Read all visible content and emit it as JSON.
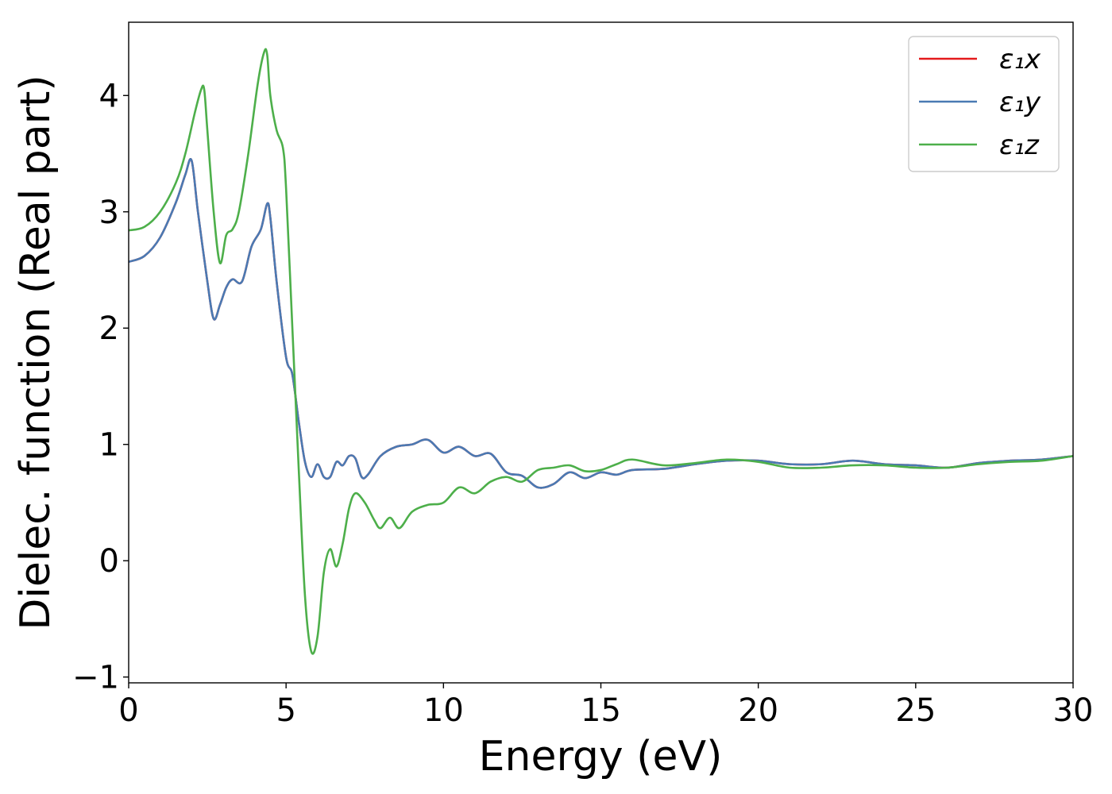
{
  "chart_data": {
    "type": "line",
    "xlabel": "Energy (eV)",
    "ylabel": "Dielec. function (Real part)",
    "xlim": [
      0,
      30
    ],
    "ylim": [
      -1.05,
      4.63
    ],
    "xticks": [
      0,
      5,
      10,
      15,
      20,
      25,
      30
    ],
    "xtick_labels": [
      "0",
      "5",
      "10",
      "15",
      "20",
      "25",
      "30"
    ],
    "yticks": [
      -1,
      0,
      1,
      2,
      3,
      4
    ],
    "ytick_labels": [
      "−1",
      "0",
      "1",
      "2",
      "3",
      "4"
    ],
    "grid": false,
    "legend_position": "top-right",
    "series": [
      {
        "name": "ε₁x",
        "color": "#e41a1c",
        "x": [
          0,
          0.5,
          1,
          1.5,
          1.8,
          2.0,
          2.2,
          2.5,
          2.7,
          2.9,
          3.1,
          3.3,
          3.6,
          3.9,
          4.2,
          4.4,
          4.5,
          4.7,
          5.0,
          5.2,
          5.4,
          5.6,
          5.8,
          6.0,
          6.2,
          6.4,
          6.6,
          6.8,
          7.0,
          7.2,
          7.4,
          7.6,
          8.0,
          8.5,
          9.0,
          9.5,
          10.0,
          10.5,
          11.0,
          11.5,
          12.0,
          12.5,
          13.0,
          13.5,
          14.0,
          14.5,
          15.0,
          15.5,
          16.0,
          17.0,
          18.0,
          19.0,
          20.0,
          21.0,
          22.0,
          23.0,
          24.0,
          25.0,
          26.0,
          27.0,
          28.0,
          29.0,
          30.0
        ],
        "values": [
          2.57,
          2.62,
          2.78,
          3.08,
          3.32,
          3.44,
          3.0,
          2.4,
          2.08,
          2.2,
          2.35,
          2.42,
          2.4,
          2.7,
          2.85,
          3.07,
          2.95,
          2.4,
          1.75,
          1.6,
          1.2,
          0.85,
          0.72,
          0.83,
          0.72,
          0.72,
          0.85,
          0.82,
          0.9,
          0.88,
          0.72,
          0.74,
          0.9,
          0.98,
          1.0,
          1.04,
          0.93,
          0.98,
          0.9,
          0.92,
          0.76,
          0.73,
          0.63,
          0.66,
          0.76,
          0.71,
          0.76,
          0.74,
          0.78,
          0.79,
          0.83,
          0.86,
          0.86,
          0.83,
          0.83,
          0.86,
          0.83,
          0.82,
          0.8,
          0.84,
          0.86,
          0.87,
          0.9
        ]
      },
      {
        "name": "ε₁y",
        "color": "#4a7ab3",
        "x": [
          0,
          0.5,
          1,
          1.5,
          1.8,
          2.0,
          2.2,
          2.5,
          2.7,
          2.9,
          3.1,
          3.3,
          3.6,
          3.9,
          4.2,
          4.4,
          4.5,
          4.7,
          5.0,
          5.2,
          5.4,
          5.6,
          5.8,
          6.0,
          6.2,
          6.4,
          6.6,
          6.8,
          7.0,
          7.2,
          7.4,
          7.6,
          8.0,
          8.5,
          9.0,
          9.5,
          10.0,
          10.5,
          11.0,
          11.5,
          12.0,
          12.5,
          13.0,
          13.5,
          14.0,
          14.5,
          15.0,
          15.5,
          16.0,
          17.0,
          18.0,
          19.0,
          20.0,
          21.0,
          22.0,
          23.0,
          24.0,
          25.0,
          26.0,
          27.0,
          28.0,
          29.0,
          30.0
        ],
        "values": [
          2.57,
          2.62,
          2.78,
          3.08,
          3.32,
          3.44,
          3.0,
          2.4,
          2.08,
          2.2,
          2.35,
          2.42,
          2.4,
          2.7,
          2.85,
          3.07,
          2.95,
          2.4,
          1.75,
          1.6,
          1.2,
          0.85,
          0.72,
          0.83,
          0.72,
          0.72,
          0.85,
          0.82,
          0.9,
          0.88,
          0.72,
          0.74,
          0.9,
          0.98,
          1.0,
          1.04,
          0.93,
          0.98,
          0.9,
          0.92,
          0.76,
          0.73,
          0.63,
          0.66,
          0.76,
          0.71,
          0.76,
          0.74,
          0.78,
          0.79,
          0.83,
          0.86,
          0.86,
          0.83,
          0.83,
          0.86,
          0.83,
          0.82,
          0.8,
          0.84,
          0.86,
          0.87,
          0.9
        ]
      },
      {
        "name": "ε₁z",
        "color": "#4daf4a",
        "x": [
          0,
          0.5,
          1,
          1.5,
          1.8,
          2.1,
          2.3,
          2.4,
          2.5,
          2.7,
          2.9,
          3.1,
          3.3,
          3.5,
          3.8,
          4.1,
          4.3,
          4.4,
          4.5,
          4.7,
          4.9,
          5.0,
          5.2,
          5.4,
          5.6,
          5.8,
          6.0,
          6.2,
          6.4,
          6.6,
          6.8,
          7.0,
          7.2,
          7.5,
          7.8,
          8.0,
          8.3,
          8.6,
          9.0,
          9.5,
          10.0,
          10.5,
          11.0,
          11.5,
          12.0,
          12.5,
          13.0,
          13.5,
          14.0,
          14.5,
          15.0,
          15.5,
          16.0,
          17.0,
          18.0,
          19.0,
          20.0,
          21.0,
          22.0,
          23.0,
          24.0,
          25.0,
          26.0,
          27.0,
          28.0,
          29.0,
          30.0
        ],
        "values": [
          2.84,
          2.87,
          3.0,
          3.25,
          3.5,
          3.85,
          4.05,
          4.05,
          3.7,
          3.0,
          2.56,
          2.8,
          2.85,
          3.0,
          3.5,
          4.1,
          4.37,
          4.35,
          4.0,
          3.7,
          3.55,
          3.2,
          2.0,
          0.8,
          -0.3,
          -0.78,
          -0.65,
          -0.1,
          0.1,
          -0.05,
          0.15,
          0.45,
          0.58,
          0.5,
          0.35,
          0.28,
          0.37,
          0.28,
          0.42,
          0.48,
          0.5,
          0.63,
          0.58,
          0.68,
          0.72,
          0.68,
          0.78,
          0.8,
          0.82,
          0.77,
          0.78,
          0.83,
          0.87,
          0.82,
          0.84,
          0.87,
          0.85,
          0.8,
          0.8,
          0.82,
          0.82,
          0.8,
          0.8,
          0.83,
          0.85,
          0.86,
          0.9
        ]
      }
    ]
  }
}
